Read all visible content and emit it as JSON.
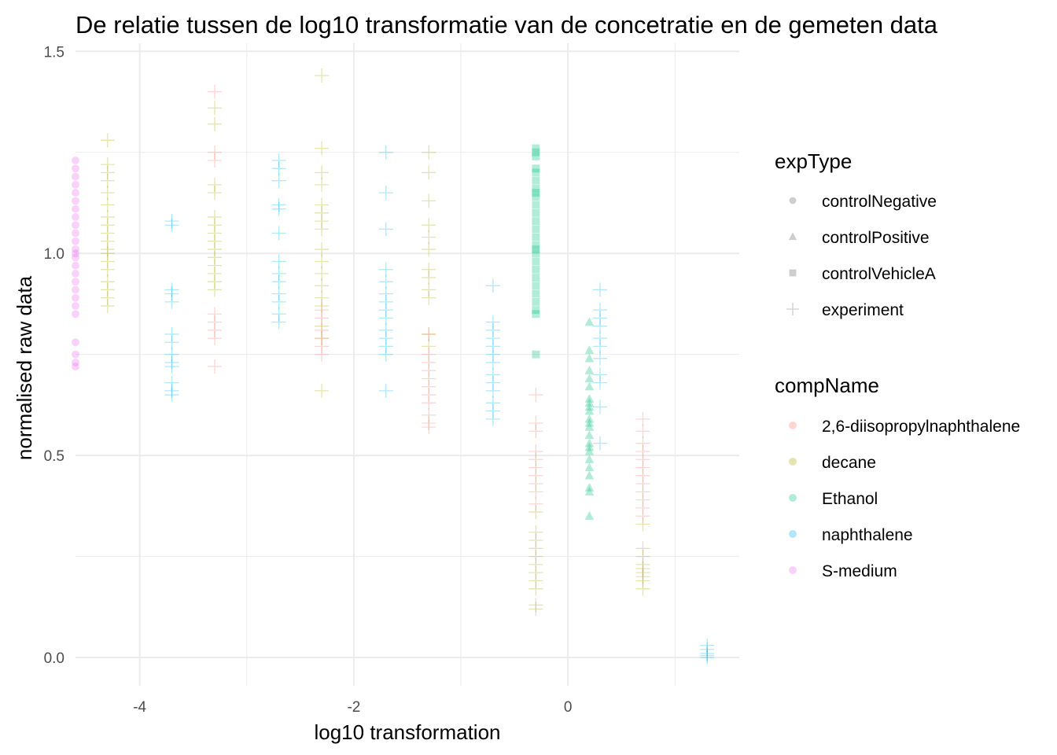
{
  "chart_data": {
    "type": "scatter",
    "title": "De relatie tussen de log10 transformatie van de concetratie en de gemeten data",
    "xlabel": "log10 transformation",
    "ylabel": "normalised raw data",
    "xlim": [
      -4.6,
      1.6
    ],
    "ylim": [
      -0.07,
      1.52
    ],
    "x_ticks": [
      -4,
      -2,
      0
    ],
    "y_ticks": [
      0.0,
      0.5,
      1.0,
      1.5
    ],
    "y_tick_labels": [
      "0.0",
      "0.5",
      "1.0",
      "1.5"
    ],
    "grid": true,
    "legend_placement": "right",
    "point_alpha": 0.3,
    "legend_shape": {
      "title": "expType",
      "entries": [
        {
          "label": "controlNegative",
          "shape": "circle"
        },
        {
          "label": "controlPositive",
          "shape": "triangle"
        },
        {
          "label": "controlVehicleA",
          "shape": "square"
        },
        {
          "label": "experiment",
          "shape": "plus"
        }
      ]
    },
    "legend_color": {
      "title": "compName",
      "entries": [
        {
          "label": "2,6-diisopropylnaphthalene",
          "color": "#F8766D"
        },
        {
          "label": "decane",
          "color": "#A3A500"
        },
        {
          "label": "Ethanol",
          "color": "#00BF7D"
        },
        {
          "label": "naphthalene",
          "color": "#00B0F6"
        },
        {
          "label": "S-medium",
          "color": "#E76BF3"
        }
      ]
    },
    "series": [
      {
        "comp": "S-medium",
        "shape": "circle",
        "x": -4.6,
        "y": [
          1.23,
          1.21,
          1.19,
          1.17,
          1.15,
          1.13,
          1.11,
          1.09,
          1.07,
          1.05,
          1.03,
          1.01,
          1.0,
          0.99,
          0.97,
          0.95,
          0.93,
          0.91,
          0.89,
          0.87,
          0.85,
          0.78,
          0.75,
          0.73,
          0.72
        ]
      },
      {
        "comp": "Ethanol",
        "shape": "square",
        "x": -0.3,
        "y": [
          1.26,
          1.25,
          1.24,
          1.21,
          1.2,
          1.18,
          1.16,
          1.15,
          1.14,
          1.12,
          1.1,
          1.08,
          1.06,
          1.04,
          1.02,
          1.01,
          1.0,
          0.98,
          0.96,
          0.94,
          0.92,
          0.9,
          0.88,
          0.86,
          0.85,
          0.75
        ]
      },
      {
        "comp": "Ethanol",
        "shape": "triangle",
        "x": 0.2,
        "y": [
          0.83,
          0.76,
          0.74,
          0.71,
          0.69,
          0.67,
          0.64,
          0.63,
          0.62,
          0.61,
          0.59,
          0.58,
          0.57,
          0.55,
          0.53,
          0.52,
          0.51,
          0.49,
          0.47,
          0.45,
          0.42,
          0.41,
          0.35
        ]
      },
      {
        "comp": "decane",
        "shape": "plus",
        "x": -4.3,
        "y": [
          1.28,
          1.22,
          1.2,
          1.18,
          1.15,
          1.12,
          1.09,
          1.07,
          1.05,
          1.03,
          1.01,
          1.0,
          0.98,
          0.96,
          0.93,
          0.91,
          0.89,
          0.87
        ]
      },
      {
        "comp": "naphthalene",
        "shape": "plus",
        "x": -3.7,
        "y": [
          1.08,
          1.07,
          0.91,
          0.9,
          0.88,
          0.8,
          0.78,
          0.75,
          0.73,
          0.72,
          0.68,
          0.66,
          0.65
        ]
      },
      {
        "comp": "decane",
        "shape": "plus",
        "x": -3.3,
        "y": [
          1.36,
          1.32,
          1.17,
          1.15,
          1.09,
          1.07,
          1.05,
          1.03,
          1.01,
          0.99,
          0.97,
          0.95,
          0.93,
          0.91
        ]
      },
      {
        "comp": "2,6-diisopropylnaphthalene",
        "shape": "plus",
        "x": -3.3,
        "y": [
          1.4,
          1.25,
          1.23,
          0.85,
          0.83,
          0.81,
          0.79,
          0.72
        ]
      },
      {
        "comp": "naphthalene",
        "shape": "plus",
        "x": -2.7,
        "y": [
          1.23,
          1.21,
          1.18,
          1.12,
          1.11,
          1.05,
          0.98,
          0.95,
          0.93,
          0.9,
          0.88,
          0.85,
          0.83
        ]
      },
      {
        "comp": "decane",
        "shape": "plus",
        "x": -2.3,
        "y": [
          1.44,
          1.26,
          1.2,
          1.17,
          1.12,
          1.1,
          1.08,
          1.06,
          1.01,
          0.98,
          0.95,
          0.92,
          0.89,
          0.87,
          0.82,
          0.79,
          0.66
        ]
      },
      {
        "comp": "2,6-diisopropylnaphthalene",
        "shape": "plus",
        "x": -2.3,
        "y": [
          0.86,
          0.84,
          0.81,
          0.79,
          0.77,
          0.75
        ]
      },
      {
        "comp": "naphthalene",
        "shape": "plus",
        "x": -1.7,
        "y": [
          1.25,
          1.15,
          1.06,
          0.96,
          0.93,
          0.9,
          0.88,
          0.86,
          0.84,
          0.81,
          0.79,
          0.77,
          0.75,
          0.66
        ]
      },
      {
        "comp": "decane",
        "shape": "plus",
        "x": -1.3,
        "y": [
          1.25,
          1.2,
          1.13,
          1.07,
          1.04,
          1.01,
          0.96,
          0.94,
          0.91,
          0.89,
          0.8,
          0.77
        ]
      },
      {
        "comp": "2,6-diisopropylnaphthalene",
        "shape": "plus",
        "x": -1.3,
        "y": [
          0.8,
          0.75,
          0.73,
          0.71,
          0.69,
          0.67,
          0.65,
          0.63,
          0.6,
          0.58,
          0.57
        ]
      },
      {
        "comp": "naphthalene",
        "shape": "plus",
        "x": -0.7,
        "y": [
          0.92,
          0.83,
          0.81,
          0.79,
          0.77,
          0.75,
          0.73,
          0.7,
          0.68,
          0.66,
          0.63,
          0.61,
          0.59
        ]
      },
      {
        "comp": "2,6-diisopropylnaphthalene",
        "shape": "plus",
        "x": -0.3,
        "y": [
          0.65,
          0.58,
          0.56,
          0.51,
          0.49,
          0.47,
          0.45,
          0.43,
          0.41,
          0.38
        ]
      },
      {
        "comp": "decane",
        "shape": "plus",
        "x": -0.3,
        "y": [
          0.36,
          0.31,
          0.29,
          0.27,
          0.25,
          0.23,
          0.21,
          0.19,
          0.17,
          0.13,
          0.12
        ]
      },
      {
        "comp": "naphthalene",
        "shape": "plus",
        "x": 0.3,
        "y": [
          0.91,
          0.86,
          0.84,
          0.82,
          0.79,
          0.77,
          0.74,
          0.7,
          0.68,
          0.62,
          0.53
        ]
      },
      {
        "comp": "2,6-diisopropylnaphthalene",
        "shape": "plus",
        "x": 0.7,
        "y": [
          0.59,
          0.56,
          0.53,
          0.51,
          0.49,
          0.47,
          0.45,
          0.43,
          0.41,
          0.39,
          0.37,
          0.35
        ]
      },
      {
        "comp": "decane",
        "shape": "plus",
        "x": 0.7,
        "y": [
          0.33,
          0.27,
          0.25,
          0.23,
          0.22,
          0.21,
          0.2,
          0.19,
          0.17
        ]
      },
      {
        "comp": "naphthalene",
        "shape": "plus",
        "x": 1.3,
        "y": [
          0.03,
          0.02,
          0.01,
          0.005,
          0.0
        ]
      }
    ]
  }
}
